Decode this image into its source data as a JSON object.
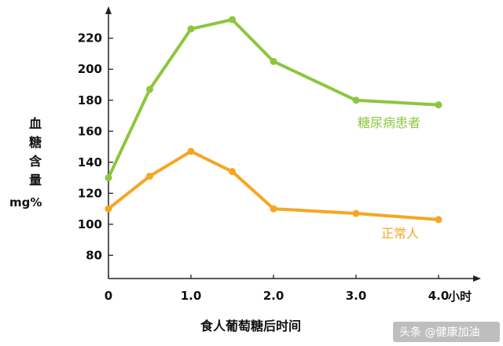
{
  "chart_data": {
    "type": "line",
    "ylabel": "血糖含量",
    "yunit": "mg%",
    "xlabel": "食人葡萄糖后时间",
    "xunit": "小时",
    "xticks": [
      "0",
      "1.0",
      "2.0",
      "3.0",
      "4.0"
    ],
    "yticks": [
      "80",
      "100",
      "120",
      "140",
      "160",
      "180",
      "200",
      "220"
    ],
    "xlim": [
      0,
      4.4
    ],
    "ylim": [
      65,
      232
    ],
    "y_start_label": "0",
    "series": [
      {
        "name": "糖尿病患者",
        "color": "#8cc63f",
        "x": [
          0,
          0.5,
          1.0,
          1.5,
          2.0,
          3.0,
          4.0
        ],
        "y": [
          130,
          187,
          226,
          232,
          205,
          180,
          177
        ]
      },
      {
        "name": "正常人",
        "color": "#f5a623",
        "x": [
          0,
          0.5,
          1.0,
          1.5,
          2.0,
          3.0,
          4.0
        ],
        "y": [
          110,
          131,
          147,
          134,
          110,
          107,
          103
        ]
      }
    ],
    "grid": false
  },
  "watermark": "头条 @健康加油"
}
